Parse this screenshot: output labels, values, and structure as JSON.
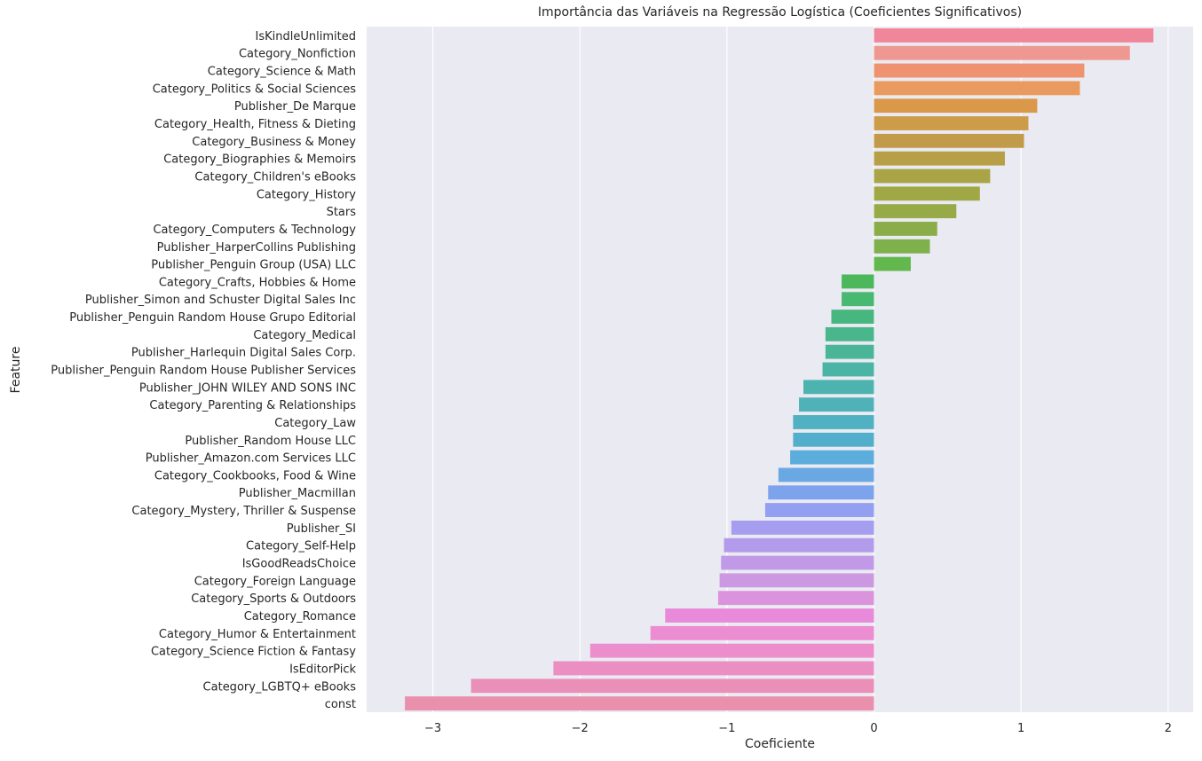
{
  "chart_data": {
    "type": "bar",
    "orientation": "horizontal",
    "title": "Importância das Variáveis na Regressão Logística (Coeficientes Significativos)",
    "xlabel": "Coeficiente",
    "ylabel": "Feature",
    "xlim": [
      -3.45,
      2.17
    ],
    "xticks": [
      -3,
      -2,
      -1,
      0,
      1,
      2
    ],
    "xtick_labels": [
      "−3",
      "−2",
      "−1",
      "0",
      "1",
      "2"
    ],
    "grid": true,
    "categories": [
      "IsKindleUnlimited",
      "Category_Nonfiction",
      "Category_Science & Math",
      "Category_Politics & Social Sciences",
      "Publisher_De Marque",
      "Category_Health, Fitness & Dieting",
      "Category_Business & Money",
      "Category_Biographies & Memoirs",
      "Category_Children's eBooks",
      "Category_History",
      "Stars",
      "Category_Computers & Technology",
      "Publisher_HarperCollins Publishing",
      "Publisher_Penguin Group (USA) LLC",
      "Category_Crafts, Hobbies & Home",
      "Publisher_Simon and Schuster Digital Sales Inc",
      "Publisher_Penguin Random House Grupo Editorial",
      "Category_Medical",
      "Publisher_Harlequin Digital Sales Corp.",
      "Publisher_Penguin Random House Publisher Services",
      "Publisher_JOHN WILEY AND SONS INC",
      "Category_Parenting & Relationships",
      "Category_Law",
      "Publisher_Random House LLC",
      "Publisher_Amazon.com Services LLC",
      "Category_Cookbooks, Food & Wine",
      "Publisher_Macmillan",
      "Category_Mystery, Thriller & Suspense",
      "Publisher_SI",
      "Category_Self-Help",
      "IsGoodReadsChoice",
      "Category_Foreign Language",
      "Category_Sports & Outdoors",
      "Category_Romance",
      "Category_Humor & Entertainment",
      "Category_Science Fiction & Fantasy",
      "IsEditorPick",
      "Category_LGBTQ+ eBooks",
      "const"
    ],
    "values": [
      1.9,
      1.74,
      1.43,
      1.4,
      1.11,
      1.05,
      1.02,
      0.89,
      0.79,
      0.72,
      0.56,
      0.43,
      0.38,
      0.25,
      -0.22,
      -0.22,
      -0.29,
      -0.33,
      -0.33,
      -0.35,
      -0.48,
      -0.51,
      -0.55,
      -0.55,
      -0.57,
      -0.65,
      -0.72,
      -0.74,
      -0.97,
      -1.02,
      -1.04,
      -1.05,
      -1.06,
      -1.42,
      -1.52,
      -1.93,
      -2.18,
      -2.74,
      -3.19
    ],
    "colors": [
      "#f0869a",
      "#ef9891",
      "#ee9270",
      "#e99a5e",
      "#d9984a",
      "#cd9c49",
      "#c29b4a",
      "#b79f48",
      "#a9a445",
      "#a0a845",
      "#96ab48",
      "#8bad49",
      "#7eb04b",
      "#62b74d",
      "#4cb85b",
      "#49b870",
      "#48b77f",
      "#4ab68c",
      "#4bb598",
      "#4cb4a4",
      "#4db3ae",
      "#4fb2b8",
      "#50b1c2",
      "#52afcc",
      "#5baddb",
      "#6aa8e4",
      "#7ea3ed",
      "#93a0f2",
      "#a59df0",
      "#b29beb",
      "#c09ae6",
      "#cd98e2",
      "#dc93dd",
      "#e88ad9",
      "#ec8cd1",
      "#eb8ecb",
      "#eb8fc2",
      "#ea8fb7",
      "#e991ac"
    ]
  }
}
